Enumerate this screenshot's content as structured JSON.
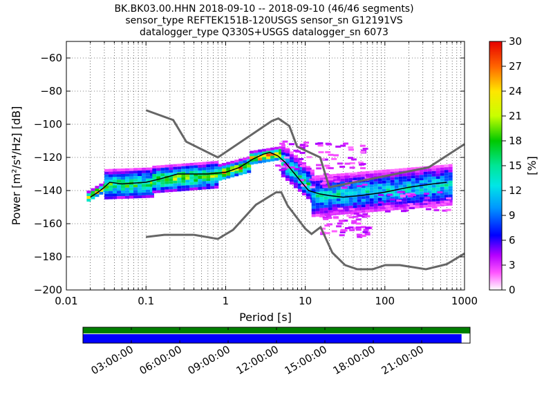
{
  "title": {
    "line1": "BK.BK03.00.HHN   2018-09-10 -- 2018-09-10  (46/46 segments)",
    "line2": "sensor_type REFTEK151B-120USGS sensor_sn G12191VS",
    "line3": "datalogger_type Q330S+USGS datalogger_sn 6073"
  },
  "chart_data": [
    {
      "type": "heatmap",
      "xlabel": "Period [s]",
      "ylabel": "Power [m²/s⁴/Hz] [dB]",
      "x_scale": "log",
      "xlim": [
        0.01,
        1000
      ],
      "ylim": [
        -200,
        -50
      ],
      "x_ticks": [
        {
          "value": 0.01,
          "label": "0.01"
        },
        {
          "value": 0.1,
          "label": "0.1"
        },
        {
          "value": 1,
          "label": "1"
        },
        {
          "value": 10,
          "label": "10"
        },
        {
          "value": 100,
          "label": "100"
        },
        {
          "value": 1000,
          "label": "1000"
        }
      ],
      "y_ticks": [
        {
          "value": -60,
          "label": "−60"
        },
        {
          "value": -80,
          "label": "−80"
        },
        {
          "value": -100,
          "label": "−100"
        },
        {
          "value": -120,
          "label": "−120"
        },
        {
          "value": -140,
          "label": "−140"
        },
        {
          "value": -160,
          "label": "−160"
        },
        {
          "value": -180,
          "label": "−180"
        },
        {
          "value": -200,
          "label": "−200"
        }
      ],
      "grid": true,
      "colorbar": {
        "label": "[%]",
        "range": [
          0,
          30
        ],
        "ticks": [
          {
            "value": 0,
            "label": "0"
          },
          {
            "value": 3,
            "label": "3"
          },
          {
            "value": 6,
            "label": "6"
          },
          {
            "value": 9,
            "label": "9"
          },
          {
            "value": 12,
            "label": "12"
          },
          {
            "value": 15,
            "label": "15"
          },
          {
            "value": 18,
            "label": "18"
          },
          {
            "value": 21,
            "label": "21"
          },
          {
            "value": 24,
            "label": "24"
          },
          {
            "value": 27,
            "label": "27"
          },
          {
            "value": 30,
            "label": "30"
          }
        ]
      },
      "noise_model_high": [
        [
          0.1,
          -91.5
        ],
        [
          0.22,
          -97.4
        ],
        [
          0.32,
          -110.5
        ],
        [
          0.8,
          -120
        ],
        [
          3.8,
          -98
        ],
        [
          4.6,
          -96.5
        ],
        [
          6.3,
          -101
        ],
        [
          7.9,
          -113.5
        ],
        [
          15.4,
          -120
        ],
        [
          20,
          -138
        ],
        [
          354.8,
          -126
        ],
        [
          1000,
          -112
        ]
      ],
      "noise_model_low": [
        [
          0.1,
          -168
        ],
        [
          0.17,
          -166.7
        ],
        [
          0.4,
          -166.7
        ],
        [
          0.8,
          -169.2
        ],
        [
          1.24,
          -163.7
        ],
        [
          2.4,
          -148.6
        ],
        [
          4.3,
          -141.1
        ],
        [
          5.0,
          -141.1
        ],
        [
          6.0,
          -149
        ],
        [
          10,
          -163
        ],
        [
          12,
          -166.2
        ],
        [
          15.6,
          -162.1
        ],
        [
          21.9,
          -177.5
        ],
        [
          31.6,
          -185
        ],
        [
          45,
          -187.5
        ],
        [
          70,
          -187.5
        ],
        [
          101,
          -185
        ],
        [
          154,
          -185
        ],
        [
          328,
          -187.5
        ],
        [
          600,
          -184.4
        ],
        [
          1000,
          -178
        ]
      ],
      "mode_curve": [
        [
          0.02,
          -144
        ],
        [
          0.025,
          -141
        ],
        [
          0.03,
          -138
        ],
        [
          0.035,
          -135
        ],
        [
          0.05,
          -136
        ],
        [
          0.1,
          -135
        ],
        [
          0.15,
          -133
        ],
        [
          0.25,
          -130
        ],
        [
          0.4,
          -130
        ],
        [
          0.6,
          -130
        ],
        [
          1.0,
          -129
        ],
        [
          1.5,
          -126
        ],
        [
          2.2,
          -121
        ],
        [
          3.0,
          -118
        ],
        [
          3.6,
          -117
        ],
        [
          4.5,
          -119
        ],
        [
          5.6,
          -123
        ],
        [
          7.1,
          -129
        ],
        [
          9.0,
          -135
        ],
        [
          11,
          -140
        ],
        [
          15,
          -142
        ],
        [
          20,
          -143
        ],
        [
          30,
          -144
        ],
        [
          50,
          -143
        ],
        [
          100,
          -141
        ],
        [
          200,
          -138
        ],
        [
          400,
          -136
        ],
        [
          600,
          -135
        ]
      ],
      "density_bands": [
        {
          "period": [
            0.018,
            0.03
          ],
          "center": [
            -143,
            -137
          ],
          "width": 3,
          "peak": 26
        },
        {
          "period": [
            0.03,
            0.12
          ],
          "center": [
            -136,
            -135
          ],
          "width": 9,
          "peak": 18
        },
        {
          "period": [
            0.12,
            0.8
          ],
          "center": [
            -133,
            -130
          ],
          "width": 8,
          "peak": 20
        },
        {
          "period": [
            0.8,
            2.0
          ],
          "center": [
            -129,
            -124
          ],
          "width": 5,
          "peak": 24
        },
        {
          "period": [
            2.0,
            5.0
          ],
          "center": [
            -120,
            -117
          ],
          "width": 4,
          "peak": 29
        },
        {
          "period": [
            5.0,
            12.0
          ],
          "center": [
            -122,
            -138
          ],
          "width": 10,
          "peak": 15
        },
        {
          "period": [
            12.0,
            650.0
          ],
          "center": [
            -143,
            -136
          ],
          "width": 12,
          "peak": 14
        }
      ],
      "sparse_regions": [
        {
          "period": [
            4.0,
            8.0
          ],
          "power": [
            -127,
            -108
          ],
          "count": 20
        },
        {
          "period": [
            8.0,
            60.0
          ],
          "power": [
            -138,
            -110
          ],
          "count": 80
        },
        {
          "period": [
            15.0,
            60.0
          ],
          "power": [
            -168,
            -150
          ],
          "count": 70
        },
        {
          "period": [
            80.0,
            650.0
          ],
          "power": [
            -152,
            -140
          ],
          "count": 40
        }
      ]
    },
    {
      "type": "timeline",
      "tick_labels": [
        "03:00:00",
        "06:00:00",
        "09:00:00",
        "12:00:00",
        "15:00:00",
        "18:00:00",
        "21:00:00"
      ],
      "data_coverage": 0.978,
      "colors": {
        "top": "#008000",
        "bottom": "#0000ff"
      }
    }
  ]
}
